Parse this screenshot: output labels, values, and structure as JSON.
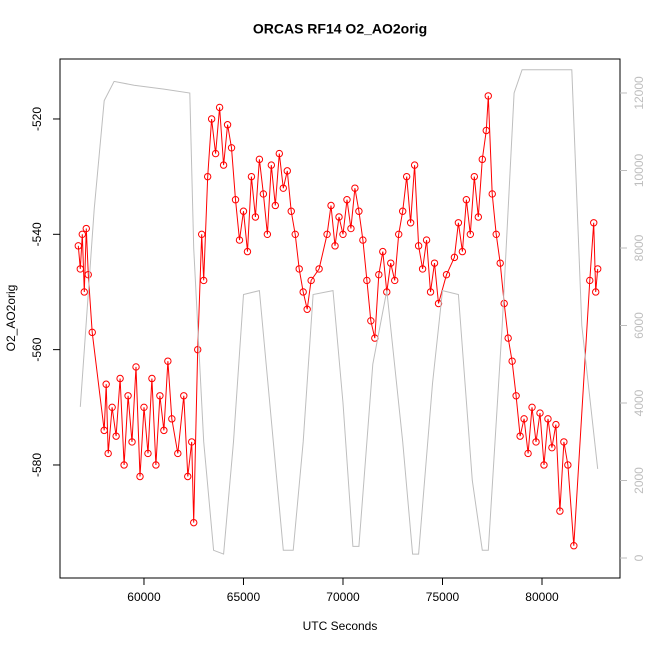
{
  "chart_data": {
    "type": "line",
    "title": "ORCAS RF14 O2_AO2orig",
    "x_label": "UTC Seconds",
    "y_label": "O2_AO2orig",
    "xlim": [
      55780,
      83920
    ],
    "xticks": [
      60000,
      65000,
      70000,
      75000,
      80000
    ],
    "ylim": [
      -599.6,
      -509.6
    ],
    "yticks": [
      -580,
      -560,
      -540,
      -520
    ],
    "y2lim": [
      -516,
      12877
    ],
    "y2ticks": [
      0,
      2000,
      4000,
      6000,
      8000,
      10000,
      12000
    ],
    "series": [
      {
        "color": "#ff0000",
        "markers": true,
        "x": [
          56700,
          56800,
          56900,
          57000,
          57100,
          57200,
          57400,
          58000,
          58100,
          58200,
          58400,
          58600,
          58800,
          59000,
          59200,
          59400,
          59600,
          59800,
          60000,
          60200,
          60400,
          60600,
          60800,
          61000,
          61200,
          61400,
          61700,
          62000,
          62200,
          62400,
          62500,
          62700,
          62900,
          63000,
          63200,
          63400,
          63600,
          63800,
          64000,
          64200,
          64400,
          64600,
          64800,
          65000,
          65200,
          65400,
          65600,
          65800,
          66000,
          66200,
          66400,
          66600,
          66800,
          67000,
          67200,
          67400,
          67600,
          67800,
          68000,
          68200,
          68400,
          68800,
          69200,
          69400,
          69600,
          69800,
          70000,
          70200,
          70400,
          70600,
          70800,
          71000,
          71200,
          71400,
          71600,
          71800,
          72000,
          72200,
          72400,
          72600,
          72800,
          73000,
          73200,
          73400,
          73600,
          73800,
          74000,
          74200,
          74400,
          74600,
          74800,
          75200,
          75600,
          75800,
          76000,
          76200,
          76400,
          76600,
          76800,
          77000,
          77200,
          77300,
          77500,
          77700,
          77900,
          78100,
          78300,
          78500,
          78700,
          78900,
          79100,
          79300,
          79500,
          79700,
          79900,
          80100,
          80300,
          80500,
          80700,
          80900,
          81100,
          81300,
          81600,
          82400,
          82600,
          82700,
          82800
        ],
        "values": [
          -542,
          -546,
          -540,
          -550,
          -539,
          -547,
          -557,
          -574,
          -566,
          -578,
          -570,
          -575,
          -565,
          -580,
          -568,
          -576,
          -563,
          -582,
          -570,
          -578,
          -565,
          -580,
          -568,
          -574,
          -562,
          -572,
          -578,
          -568,
          -582,
          -576,
          -590,
          -560,
          -540,
          -548,
          -530,
          -520,
          -526,
          -518,
          -528,
          -521,
          -525,
          -534,
          -541,
          -536,
          -543,
          -530,
          -537,
          -527,
          -533,
          -540,
          -528,
          -535,
          -526,
          -532,
          -529,
          -536,
          -540,
          -546,
          -550,
          -553,
          -548,
          -546,
          -540,
          -535,
          -542,
          -537,
          -540,
          -534,
          -539,
          -532,
          -536,
          -541,
          -548,
          -555,
          -558,
          -547,
          -543,
          -550,
          -545,
          -548,
          -540,
          -536,
          -530,
          -538,
          -528,
          -542,
          -546,
          -541,
          -550,
          -545,
          -552,
          -547,
          -544,
          -538,
          -543,
          -534,
          -540,
          -530,
          -537,
          -527,
          -522,
          -516,
          -533,
          -540,
          -545,
          -552,
          -558,
          -562,
          -568,
          -575,
          -572,
          -578,
          -570,
          -576,
          -571,
          -580,
          -572,
          -577,
          -573,
          -588,
          -576,
          -580,
          -594,
          -548,
          -538,
          -550,
          -546
        ]
      },
      {
        "color": "#bebebe",
        "axis": "y2",
        "x": [
          56800,
          57500,
          58000,
          58500,
          59500,
          61000,
          62300,
          62500,
          63000,
          63500,
          64000,
          64500,
          65000,
          65800,
          66500,
          67000,
          67500,
          68000,
          68500,
          69500,
          70000,
          70500,
          70800,
          71500,
          72200,
          73000,
          73500,
          73800,
          74500,
          75000,
          75800,
          76500,
          77000,
          77300,
          78000,
          78600,
          79000,
          81500,
          82000,
          82800
        ],
        "values": [
          3900,
          9000,
          11800,
          12300,
          12200,
          12100,
          12000,
          8000,
          3000,
          200,
          100,
          3000,
          6800,
          6900,
          3000,
          200,
          200,
          3000,
          6800,
          6900,
          4000,
          300,
          300,
          5000,
          6900,
          3000,
          100,
          100,
          4500,
          6900,
          6800,
          2000,
          200,
          200,
          6000,
          12000,
          12600,
          12600,
          6000,
          2300
        ]
      }
    ]
  }
}
